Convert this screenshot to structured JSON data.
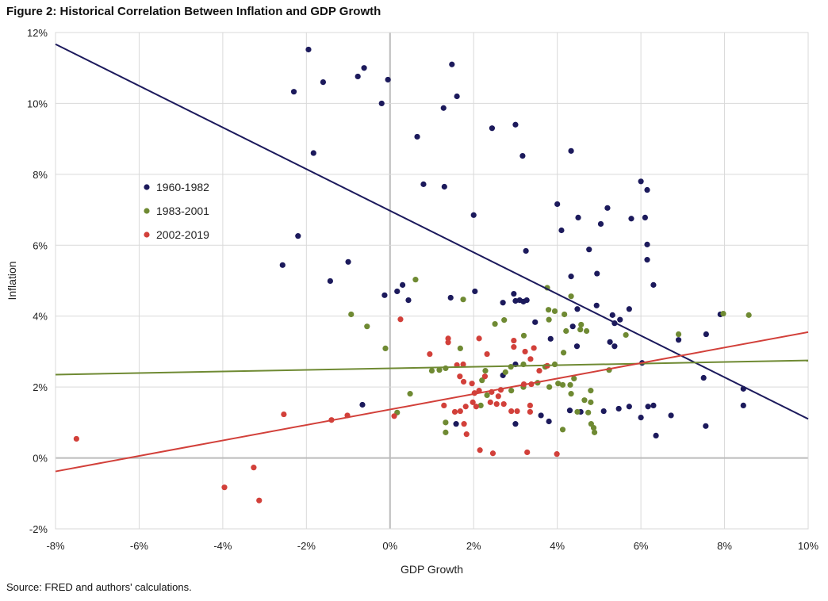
{
  "chart_data": {
    "type": "scatter",
    "title": "Figure 2: Historical Correlation Between Inflation and GDP Growth",
    "source": "Source: FRED and authors' calculations.",
    "xlabel": "GDP Growth",
    "ylabel": "Inflation",
    "xlim": [
      -8,
      10
    ],
    "ylim": [
      -2,
      12
    ],
    "xticks": [
      -8,
      -6,
      -4,
      -2,
      0,
      2,
      4,
      6,
      8,
      10
    ],
    "yticks": [
      -2,
      0,
      2,
      4,
      6,
      8,
      10,
      12
    ],
    "tick_format": "percent",
    "grid": true,
    "legend_placement": "left-middle",
    "series": [
      {
        "name": "1960-1982",
        "color": "#1c1a5c",
        "trendline": [
          [
            -8,
            11.67
          ],
          [
            10,
            1.1
          ]
        ],
        "points": [
          [
            -1.95,
            11.52
          ],
          [
            1.48,
            11.1
          ],
          [
            -0.62,
            11.0
          ],
          [
            -0.77,
            10.76
          ],
          [
            -1.6,
            10.6
          ],
          [
            -0.05,
            10.67
          ],
          [
            -2.3,
            10.33
          ],
          [
            1.6,
            10.2
          ],
          [
            -0.2,
            10.0
          ],
          [
            1.28,
            9.87
          ],
          [
            2.44,
            9.3
          ],
          [
            3.0,
            9.4
          ],
          [
            0.65,
            9.06
          ],
          [
            -1.83,
            8.6
          ],
          [
            3.17,
            8.52
          ],
          [
            4.33,
            8.66
          ],
          [
            0.8,
            7.72
          ],
          [
            1.3,
            7.65
          ],
          [
            6.0,
            7.8
          ],
          [
            6.15,
            7.56
          ],
          [
            4.0,
            7.16
          ],
          [
            2.0,
            6.85
          ],
          [
            5.2,
            7.05
          ],
          [
            4.5,
            6.78
          ],
          [
            5.77,
            6.75
          ],
          [
            6.1,
            6.78
          ],
          [
            -2.2,
            6.26
          ],
          [
            4.1,
            6.42
          ],
          [
            5.04,
            6.6
          ],
          [
            6.15,
            6.02
          ],
          [
            4.76,
            5.88
          ],
          [
            3.25,
            5.84
          ],
          [
            6.15,
            5.59
          ],
          [
            -2.57,
            5.44
          ],
          [
            -1.0,
            5.53
          ],
          [
            4.33,
            5.12
          ],
          [
            4.95,
            5.2
          ],
          [
            6.3,
            4.88
          ],
          [
            -1.43,
            4.99
          ],
          [
            -0.13,
            4.59
          ],
          [
            0.17,
            4.7
          ],
          [
            0.3,
            4.88
          ],
          [
            0.44,
            4.45
          ],
          [
            1.45,
            4.52
          ],
          [
            2.03,
            4.7
          ],
          [
            3.19,
            4.41
          ],
          [
            2.96,
            4.63
          ],
          [
            3.0,
            4.43
          ],
          [
            3.1,
            4.45
          ],
          [
            3.27,
            4.45
          ],
          [
            2.7,
            4.38
          ],
          [
            4.94,
            4.3
          ],
          [
            4.48,
            4.2
          ],
          [
            5.72,
            4.2
          ],
          [
            4.37,
            3.71
          ],
          [
            3.47,
            3.83
          ],
          [
            5.32,
            4.03
          ],
          [
            5.5,
            3.9
          ],
          [
            5.37,
            3.8
          ],
          [
            7.9,
            4.05
          ],
          [
            7.56,
            3.49
          ],
          [
            6.9,
            3.33
          ],
          [
            3.84,
            3.36
          ],
          [
            4.47,
            3.15
          ],
          [
            5.26,
            3.27
          ],
          [
            5.37,
            3.15
          ],
          [
            6.03,
            2.68
          ],
          [
            3.0,
            2.64
          ],
          [
            2.7,
            2.33
          ],
          [
            7.5,
            2.26
          ],
          [
            8.45,
            1.95
          ],
          [
            8.45,
            1.48
          ],
          [
            5.11,
            1.32
          ],
          [
            5.47,
            1.39
          ],
          [
            5.72,
            1.45
          ],
          [
            6.17,
            1.45
          ],
          [
            6.3,
            1.48
          ],
          [
            6.0,
            1.14
          ],
          [
            6.72,
            1.2
          ],
          [
            6.36,
            0.63
          ],
          [
            7.55,
            0.9
          ],
          [
            4.3,
            1.34
          ],
          [
            4.56,
            1.3
          ],
          [
            3.61,
            1.2
          ],
          [
            3.8,
            1.03
          ],
          [
            3.0,
            0.96
          ],
          [
            1.58,
            0.96
          ],
          [
            -0.66,
            1.5
          ]
        ]
      },
      {
        "name": "1983-2001",
        "color": "#6f8a33",
        "trendline": [
          [
            -8,
            2.35
          ],
          [
            10,
            2.75
          ]
        ],
        "points": [
          [
            0.61,
            5.03
          ],
          [
            3.76,
            4.8
          ],
          [
            -0.93,
            4.05
          ],
          [
            -0.55,
            3.71
          ],
          [
            -0.11,
            3.09
          ],
          [
            1.75,
            4.47
          ],
          [
            2.51,
            3.78
          ],
          [
            2.73,
            3.89
          ],
          [
            3.2,
            3.45
          ],
          [
            3.79,
            4.18
          ],
          [
            3.94,
            4.14
          ],
          [
            4.17,
            4.05
          ],
          [
            4.33,
            4.56
          ],
          [
            3.8,
            3.9
          ],
          [
            4.57,
            3.76
          ],
          [
            4.7,
            3.58
          ],
          [
            4.55,
            3.62
          ],
          [
            4.21,
            3.58
          ],
          [
            4.15,
            2.97
          ],
          [
            5.64,
            3.47
          ],
          [
            6.9,
            3.49
          ],
          [
            7.97,
            4.07
          ],
          [
            8.58,
            4.03
          ],
          [
            1.0,
            2.46
          ],
          [
            1.18,
            2.48
          ],
          [
            2.28,
            2.46
          ],
          [
            2.76,
            2.42
          ],
          [
            2.89,
            2.57
          ],
          [
            3.19,
            2.64
          ],
          [
            3.71,
            2.57
          ],
          [
            3.94,
            2.64
          ],
          [
            4.4,
            2.24
          ],
          [
            5.24,
            2.48
          ],
          [
            0.48,
            1.81
          ],
          [
            0.17,
            1.28
          ],
          [
            1.33,
            1.0
          ],
          [
            1.33,
            0.72
          ],
          [
            2.2,
            2.19
          ],
          [
            2.32,
            1.77
          ],
          [
            2.17,
            1.48
          ],
          [
            2.9,
            1.9
          ],
          [
            3.19,
            2.0
          ],
          [
            3.53,
            2.12
          ],
          [
            3.81,
            2.0
          ],
          [
            4.02,
            2.1
          ],
          [
            4.13,
            2.06
          ],
          [
            4.31,
            2.06
          ],
          [
            4.33,
            1.81
          ],
          [
            4.13,
            0.8
          ],
          [
            4.65,
            1.63
          ],
          [
            4.8,
            1.57
          ],
          [
            4.8,
            1.9
          ],
          [
            4.48,
            1.3
          ],
          [
            4.74,
            1.28
          ],
          [
            4.81,
            0.96
          ],
          [
            4.87,
            0.85
          ],
          [
            4.89,
            0.72
          ],
          [
            1.68,
            3.09
          ],
          [
            1.33,
            2.53
          ]
        ]
      },
      {
        "name": "2002-2019",
        "color": "#d2403a",
        "trendline": [
          [
            -8,
            -0.38
          ],
          [
            10,
            3.55
          ]
        ],
        "points": [
          [
            -7.5,
            0.54
          ],
          [
            -3.96,
            -0.83
          ],
          [
            -3.26,
            -0.27
          ],
          [
            -3.13,
            -1.2
          ],
          [
            -2.54,
            1.23
          ],
          [
            -1.4,
            1.07
          ],
          [
            -1.02,
            1.2
          ],
          [
            0.1,
            1.18
          ],
          [
            0.25,
            3.91
          ],
          [
            0.95,
            2.93
          ],
          [
            1.39,
            3.37
          ],
          [
            1.39,
            3.26
          ],
          [
            2.13,
            3.37
          ],
          [
            2.32,
            2.93
          ],
          [
            2.96,
            3.31
          ],
          [
            2.96,
            3.13
          ],
          [
            3.23,
            3.0
          ],
          [
            3.36,
            2.79
          ],
          [
            3.44,
            3.1
          ],
          [
            1.6,
            2.62
          ],
          [
            1.75,
            2.64
          ],
          [
            1.67,
            2.3
          ],
          [
            1.76,
            2.15
          ],
          [
            1.96,
            2.1
          ],
          [
            2.02,
            1.83
          ],
          [
            2.13,
            1.9
          ],
          [
            2.43,
            1.86
          ],
          [
            2.4,
            1.57
          ],
          [
            2.59,
            1.74
          ],
          [
            2.65,
            1.92
          ],
          [
            2.55,
            1.52
          ],
          [
            2.72,
            1.52
          ],
          [
            2.9,
            1.32
          ],
          [
            3.04,
            1.32
          ],
          [
            3.2,
            2.08
          ],
          [
            3.38,
            2.08
          ],
          [
            3.35,
            1.48
          ],
          [
            3.35,
            1.3
          ],
          [
            3.57,
            2.46
          ],
          [
            3.76,
            2.6
          ],
          [
            1.55,
            1.3
          ],
          [
            1.68,
            1.32
          ],
          [
            1.81,
            1.45
          ],
          [
            2.06,
            1.45
          ],
          [
            1.29,
            1.48
          ],
          [
            1.77,
            0.96
          ],
          [
            1.83,
            0.67
          ],
          [
            2.15,
            0.22
          ],
          [
            2.46,
            0.13
          ],
          [
            3.28,
            0.16
          ],
          [
            3.99,
            0.11
          ],
          [
            2.27,
            2.3
          ],
          [
            1.98,
            1.57
          ]
        ]
      }
    ]
  }
}
